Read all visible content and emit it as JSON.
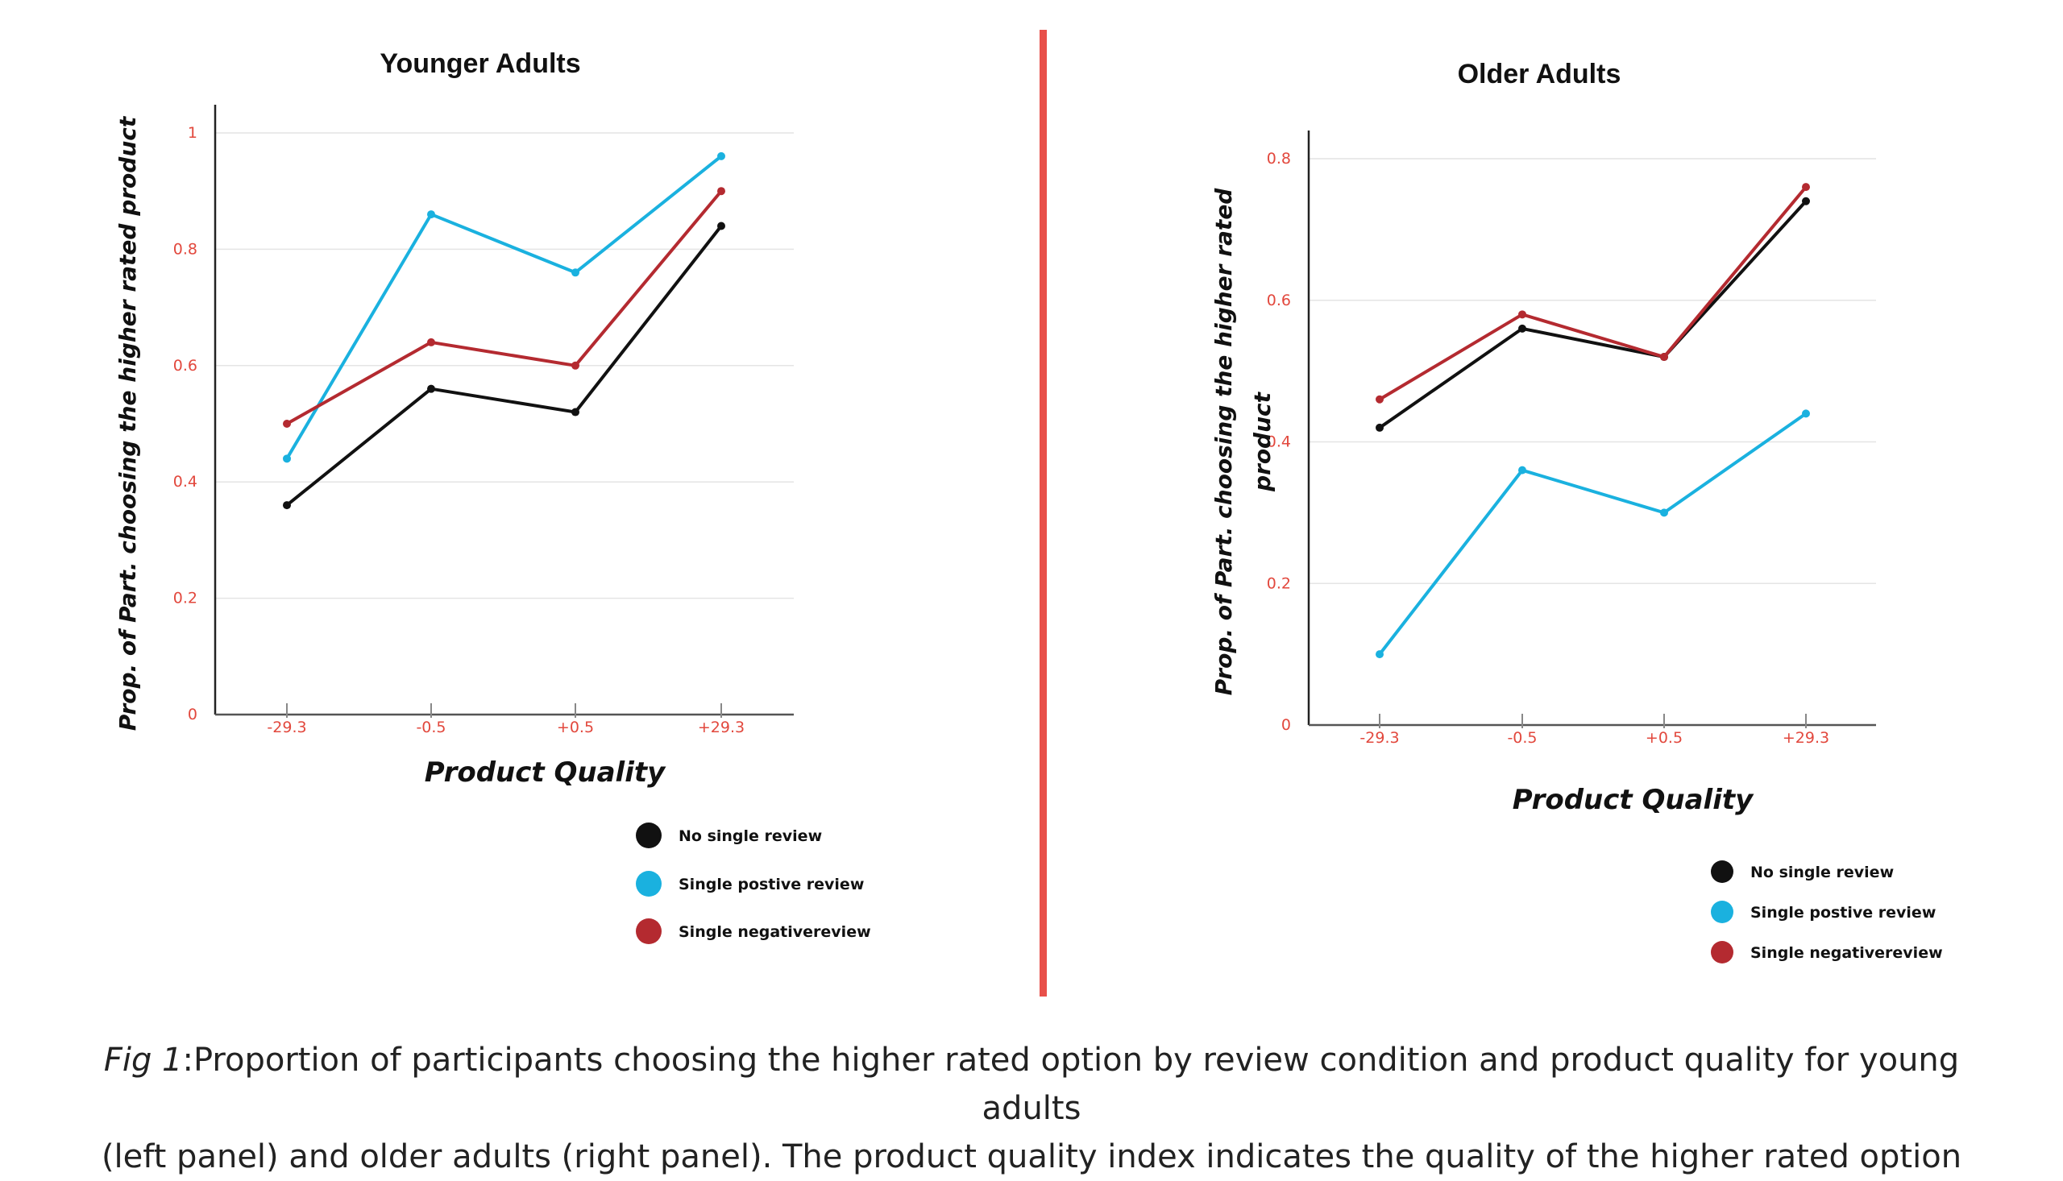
{
  "divider_color": "#e8504a",
  "chart_data": [
    {
      "type": "line",
      "title": "Younger Adults",
      "xlabel": "Product Quality",
      "ylabel": [
        "Prop. of Part. choosing the higher rated product"
      ],
      "categories": [
        "-29.3",
        "-0.5",
        "+0.5",
        "+29.3"
      ],
      "ylim": [
        0,
        1
      ],
      "yticks": [
        "0",
        "0.2",
        "0.4",
        "0.6",
        "0.8",
        "1"
      ],
      "grid": true,
      "legend_position": "bottom-right",
      "series": [
        {
          "name": "No single review",
          "color": "#111111",
          "values": [
            0.36,
            0.56,
            0.52,
            0.84
          ]
        },
        {
          "name": "Single postive review",
          "color": "#1ab1df",
          "values": [
            0.44,
            0.86,
            0.76,
            0.96
          ]
        },
        {
          "name": "Single negativereview",
          "color": "#b42a30",
          "values": [
            0.5,
            0.64,
            0.6,
            0.9
          ]
        }
      ]
    },
    {
      "type": "line",
      "title": "Older Adults",
      "xlabel": "Product Quality",
      "ylabel": [
        "Prop. of Part. choosing the higher rated",
        "product"
      ],
      "categories": [
        "-29.3",
        "-0.5",
        "+0.5",
        "+29.3"
      ],
      "ylim": [
        0,
        0.8
      ],
      "yticks": [
        "0",
        "0.2",
        "0.4",
        "0.6",
        "0.8"
      ],
      "grid": true,
      "legend_position": "bottom-right",
      "series": [
        {
          "name": "No single review",
          "color": "#111111",
          "values": [
            0.42,
            0.56,
            0.52,
            0.74
          ]
        },
        {
          "name": "Single postive review",
          "color": "#1ab1df",
          "values": [
            0.1,
            0.36,
            0.3,
            0.44
          ]
        },
        {
          "name": "Single negativereview",
          "color": "#b42a30",
          "values": [
            0.46,
            0.58,
            0.52,
            0.76
          ]
        }
      ]
    }
  ],
  "caption": {
    "label": "Fig 1",
    "line1": ":Proportion of participants choosing the higher rated option by review condition and product quality for young adults",
    "line2": "(left panel) and older adults (right panel). The product quality index indicates the quality of the higher rated option"
  }
}
